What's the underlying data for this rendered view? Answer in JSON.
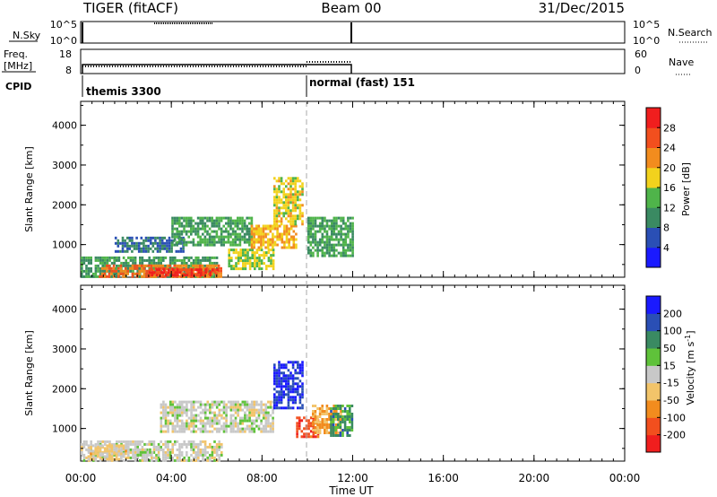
{
  "header": {
    "radar": "TIGER (fitACF)",
    "beam": "Beam 00",
    "date": "31/Dec/2015"
  },
  "top_panels": {
    "nsky_label": "N.Sky",
    "nsky_ticks": [
      "10^5",
      "10^0"
    ],
    "nsearch_label": "N.Search",
    "freq_label_1": "Freq.",
    "freq_label_2": "[MHz]",
    "freq_ticks": [
      "18",
      "8"
    ],
    "nave_label": "Nave",
    "nave_ticks": [
      "60",
      "0"
    ],
    "cpid_label": "CPID",
    "cpid_modes": [
      "themis 3300",
      "normal (fast) 151"
    ]
  },
  "time_axis": {
    "label": "Time UT",
    "ticks": [
      "00:00",
      "04:00",
      "08:00",
      "12:00",
      "16:00",
      "20:00",
      "00:00"
    ]
  },
  "range_axis": {
    "label": "Slant Range [km]",
    "ticks": [
      "4000",
      "3000",
      "2000",
      "1000"
    ]
  },
  "colors": {
    "power_scale": [
      "#1a1aff",
      "#2a4fb5",
      "#3a8a62",
      "#4fb44a",
      "#f2d21d",
      "#f28c1e",
      "#f24f1e",
      "#f01e1e"
    ],
    "velocity_scale": [
      "#f01e1e",
      "#f24f1e",
      "#f28c1e",
      "#f2c46a",
      "#c8c8c8",
      "#5fc23a",
      "#3a8a62",
      "#2a4fb5",
      "#1a1aff"
    ]
  },
  "chart_data": [
    {
      "type": "heatmap",
      "title": "",
      "xlabel": "",
      "ylabel": "Slant Range [km]",
      "xlim": [
        0,
        24
      ],
      "ylim": [
        180,
        4600
      ],
      "colorbar": {
        "label": "Power [dB]",
        "ticks": [
          "28",
          "24",
          "20",
          "16",
          "12",
          "8",
          "4"
        ],
        "range": [
          0,
          32
        ]
      },
      "blobs": [
        {
          "t0": 0.0,
          "t1": 6.0,
          "r0": 200,
          "r1": 700,
          "value": 12
        },
        {
          "t0": 0.8,
          "t1": 6.2,
          "r0": 200,
          "r1": 500,
          "value": 24
        },
        {
          "t0": 3.0,
          "t1": 6.0,
          "r0": 200,
          "r1": 400,
          "value": 28
        },
        {
          "t0": 1.5,
          "t1": 4.5,
          "r0": 800,
          "r1": 1200,
          "value": 8
        },
        {
          "t0": 4.0,
          "t1": 7.5,
          "r0": 1000,
          "r1": 1700,
          "value": 12
        },
        {
          "t0": 6.5,
          "t1": 8.5,
          "r0": 400,
          "r1": 900,
          "value": 16
        },
        {
          "t0": 7.5,
          "t1": 9.5,
          "r0": 900,
          "r1": 1500,
          "value": 20
        },
        {
          "t0": 8.5,
          "t1": 9.8,
          "r0": 1500,
          "r1": 2700,
          "value": 18
        },
        {
          "t0": 10.0,
          "t1": 12.0,
          "r0": 700,
          "r1": 1700,
          "value": 12
        }
      ]
    },
    {
      "type": "heatmap",
      "title": "",
      "xlabel": "Time UT",
      "ylabel": "Slant Range [km]",
      "xlim": [
        0,
        24
      ],
      "ylim": [
        180,
        4600
      ],
      "colorbar": {
        "label": "Velocity [m s^-1]",
        "ticks": [
          "200",
          "100",
          "50",
          "15",
          "-15",
          "-50",
          "-100",
          "-200"
        ],
        "range": [
          -250,
          250
        ]
      },
      "blobs": [
        {
          "t0": 0.0,
          "t1": 6.2,
          "r0": 200,
          "r1": 700,
          "value": 0
        },
        {
          "t0": 0.3,
          "t1": 2.0,
          "r0": 200,
          "r1": 600,
          "value": -40
        },
        {
          "t0": 2.5,
          "t1": 3.2,
          "r0": 300,
          "r1": 500,
          "value": 30
        },
        {
          "t0": 3.5,
          "t1": 8.5,
          "r0": 900,
          "r1": 1700,
          "value": 0
        },
        {
          "t0": 8.5,
          "t1": 9.8,
          "r0": 1500,
          "r1": 2700,
          "value": 200
        },
        {
          "t0": 9.5,
          "t1": 10.5,
          "r0": 800,
          "r1": 1300,
          "value": -180
        },
        {
          "t0": 10.2,
          "t1": 11.5,
          "r0": 900,
          "r1": 1600,
          "value": -80
        },
        {
          "t0": 11.0,
          "t1": 12.0,
          "r0": 800,
          "r1": 1600,
          "value": 100
        }
      ]
    }
  ]
}
